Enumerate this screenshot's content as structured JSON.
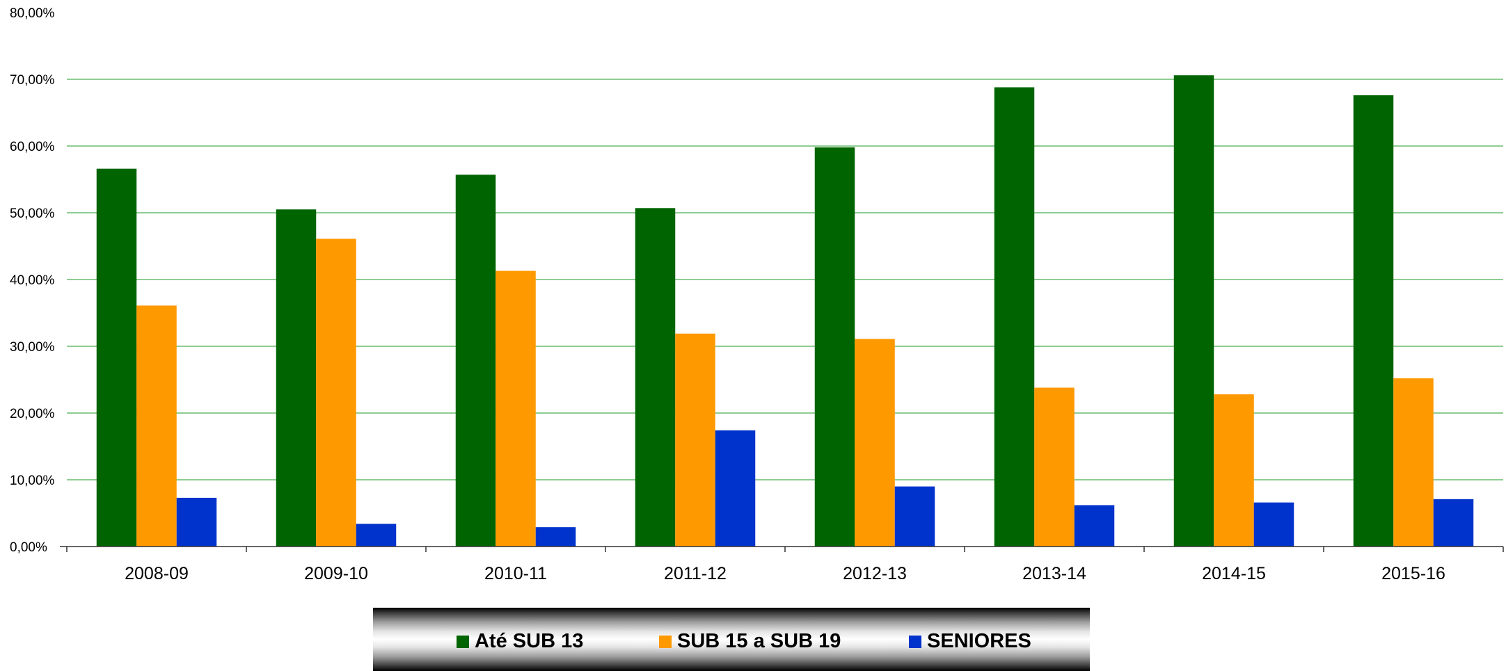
{
  "chart_data": {
    "type": "bar",
    "title": "",
    "xlabel": "",
    "ylabel": "",
    "categories": [
      "2008-09",
      "2009-10",
      "2010-11",
      "2011-12",
      "2012-13",
      "2013-14",
      "2014-15",
      "2015-16"
    ],
    "series": [
      {
        "name": "Até SUB 13",
        "color": "#006400",
        "values": [
          56.6,
          50.5,
          55.7,
          50.7,
          59.8,
          68.8,
          70.6,
          67.6
        ]
      },
      {
        "name": "SUB 15 a SUB 19",
        "color": "#FF9900",
        "values": [
          36.1,
          46.1,
          41.3,
          31.9,
          31.1,
          23.8,
          22.8,
          25.2
        ]
      },
      {
        "name": "SENIORES",
        "color": "#0033CC",
        "values": [
          7.3,
          3.4,
          2.9,
          17.4,
          9.0,
          6.2,
          6.6,
          7.1
        ]
      }
    ],
    "ylim": [
      0,
      80
    ],
    "yticks": [
      0,
      10,
      20,
      30,
      40,
      50,
      60,
      70,
      80
    ],
    "ytick_labels": [
      "0,00%",
      "10,00%",
      "20,00%",
      "30,00%",
      "40,00%",
      "50,00%",
      "60,00%",
      "70,00%",
      "80,00%"
    ],
    "grid": true,
    "grid_color": "#4CAF50",
    "legend_position": "bottom"
  }
}
